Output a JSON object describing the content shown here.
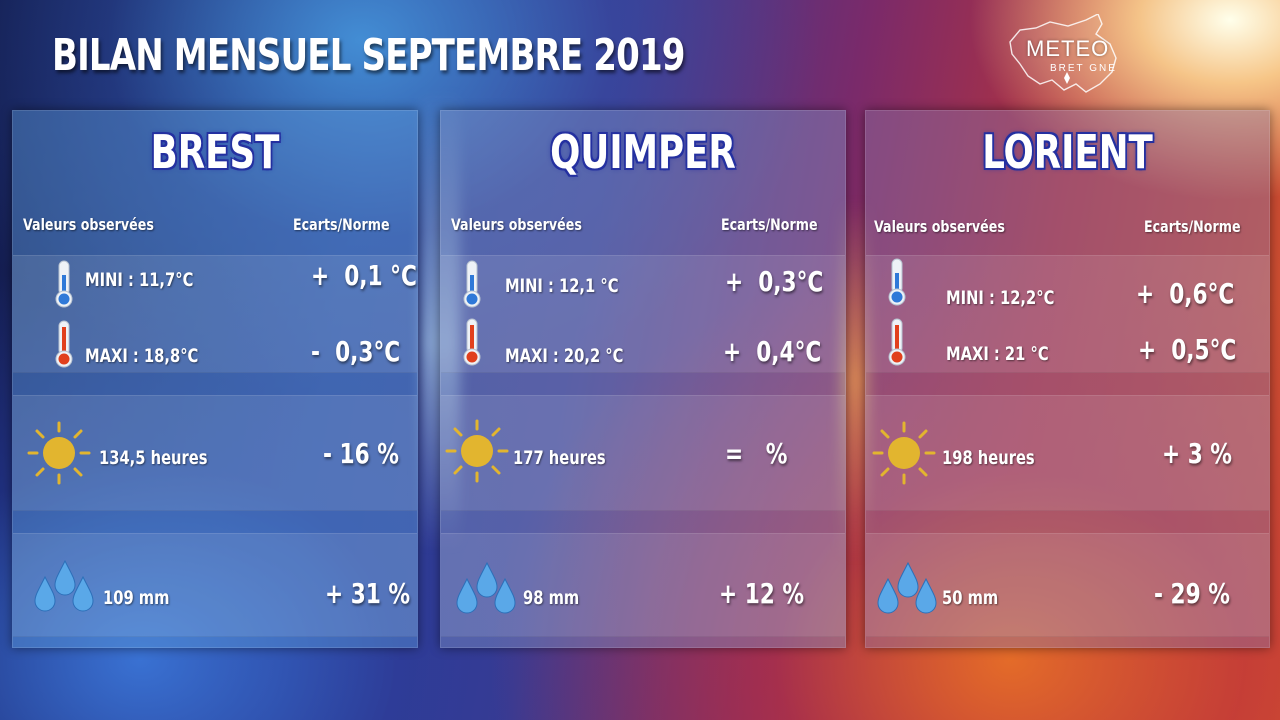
{
  "title": "BILAN MENSUEL SEPTEMBRE 2019",
  "logo": {
    "line1": "METEO",
    "line2": "BRET GNE"
  },
  "headers": {
    "observed": "Valeurs observées",
    "deviation": "Ecarts/Norme"
  },
  "colors": {
    "city_outline": "#2430a0",
    "sun": "#e2b52f",
    "drop": "#5aa8e8",
    "thermo_cold": "#2f79d8",
    "thermo_hot": "#e1401d"
  },
  "cities": [
    {
      "name": "BREST",
      "mini": "MINI : 11,7°C",
      "mini_dev": "+  0,1 °C",
      "maxi": "MAXI : 18,8°C",
      "maxi_dev": "-  0,3°C",
      "sun": "134,5 heures",
      "sun_dev": "- 16 %",
      "rain": "109 mm",
      "rain_dev": "+ 31 %"
    },
    {
      "name": "QUIMPER",
      "mini": "MINI :  12,1 °C",
      "mini_dev": "+  0,3°C",
      "maxi": "MAXI : 20,2 °C",
      "maxi_dev": "+  0,4°C",
      "sun": "177 heures",
      "sun_dev": "=   %",
      "rain": "98  mm",
      "rain_dev": "+ 12 %"
    },
    {
      "name": "LORIENT",
      "mini": "MINI : 12,2°C",
      "mini_dev": "+  0,6°C",
      "maxi": "MAXI : 21 °C",
      "maxi_dev": "+  0,5°C",
      "sun": "198 heures",
      "sun_dev": "+ 3 %",
      "rain": "50 mm",
      "rain_dev": "- 29 %"
    }
  ]
}
